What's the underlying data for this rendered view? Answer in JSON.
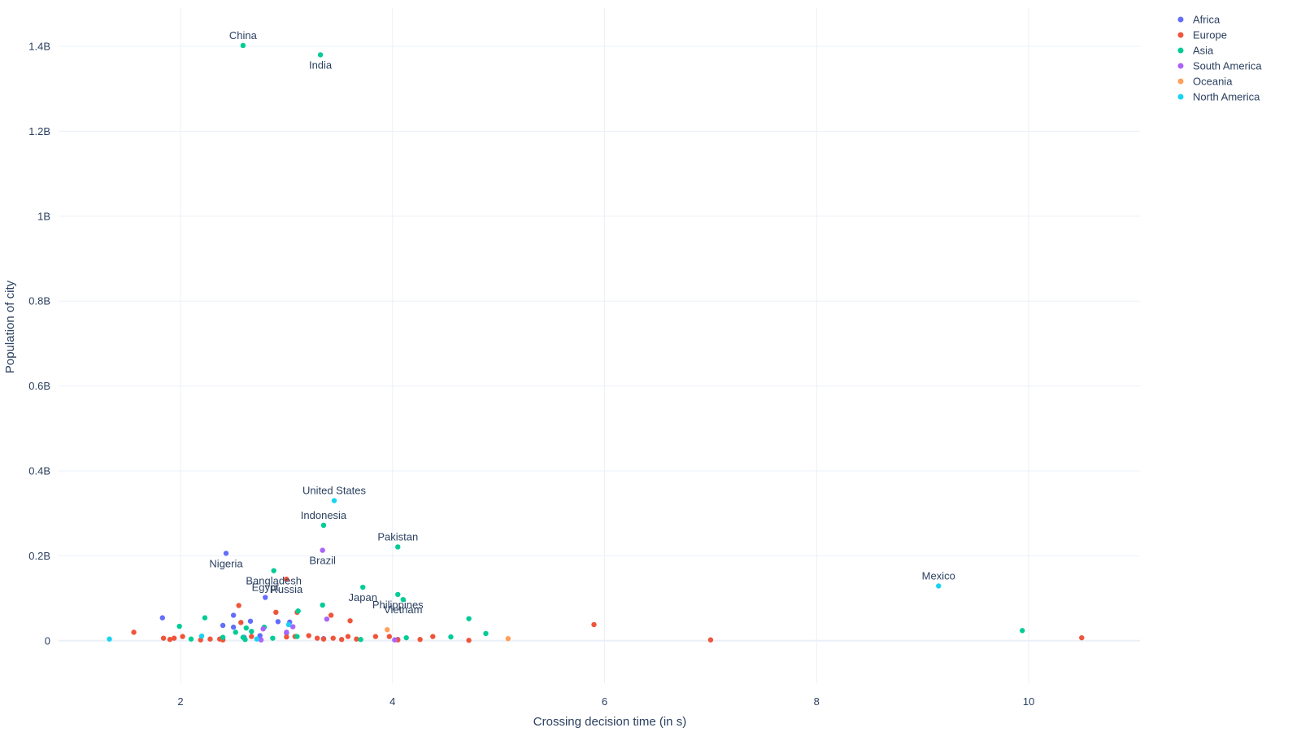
{
  "chart_data": {
    "type": "scatter",
    "title": "",
    "xlabel": "Crossing decision time (in s)",
    "ylabel": "Population of city",
    "xlim": [
      0.85,
      11.05
    ],
    "ylim": [
      -0.1,
      1.49
    ],
    "y_unit": "billion",
    "x_ticks": [
      2,
      4,
      6,
      8,
      10
    ],
    "x_tick_labels": [
      "2",
      "4",
      "6",
      "8",
      "10"
    ],
    "y_ticks": [
      0,
      0.2,
      0.4,
      0.6,
      0.8,
      1.0,
      1.2,
      1.4
    ],
    "y_tick_labels": [
      "0",
      "0.2B",
      "0.4B",
      "0.6B",
      "0.8B",
      "1B",
      "1.2B",
      "1.4B"
    ],
    "grid": true,
    "legend_position": "top-right",
    "series": [
      {
        "name": "Africa",
        "color": "#636efa",
        "points": [
          {
            "x": 2.43,
            "y": 0.206,
            "label": "Nigeria"
          },
          {
            "x": 2.8,
            "y": 0.102,
            "label": "Egypt"
          },
          {
            "x": 1.83,
            "y": 0.054
          },
          {
            "x": 2.5,
            "y": 0.06
          },
          {
            "x": 2.66,
            "y": 0.046
          },
          {
            "x": 2.92,
            "y": 0.045
          },
          {
            "x": 2.4,
            "y": 0.036
          },
          {
            "x": 2.5,
            "y": 0.032
          },
          {
            "x": 3.03,
            "y": 0.044
          },
          {
            "x": 2.75,
            "y": 0.012
          },
          {
            "x": 3.0,
            "y": 0.018
          },
          {
            "x": 2.6,
            "y": 0.008
          },
          {
            "x": 3.35,
            "y": 0.005
          },
          {
            "x": 4.05,
            "y": 0.003
          }
        ]
      },
      {
        "name": "Europe",
        "color": "#ef553b",
        "points": [
          {
            "x": 3.0,
            "y": 0.145,
            "label": "Russia"
          },
          {
            "x": 1.56,
            "y": 0.02
          },
          {
            "x": 1.84,
            "y": 0.006
          },
          {
            "x": 1.9,
            "y": 0.003
          },
          {
            "x": 1.94,
            "y": 0.006
          },
          {
            "x": 2.02,
            "y": 0.01
          },
          {
            "x": 2.19,
            "y": 0.002
          },
          {
            "x": 2.28,
            "y": 0.004
          },
          {
            "x": 2.37,
            "y": 0.004
          },
          {
            "x": 2.4,
            "y": 0.002
          },
          {
            "x": 2.55,
            "y": 0.083
          },
          {
            "x": 2.57,
            "y": 0.043
          },
          {
            "x": 2.67,
            "y": 0.01
          },
          {
            "x": 2.9,
            "y": 0.067
          },
          {
            "x": 3.0,
            "y": 0.009
          },
          {
            "x": 3.1,
            "y": 0.067
          },
          {
            "x": 3.08,
            "y": 0.01
          },
          {
            "x": 3.21,
            "y": 0.012
          },
          {
            "x": 3.29,
            "y": 0.006
          },
          {
            "x": 3.35,
            "y": 0.004
          },
          {
            "x": 3.42,
            "y": 0.06
          },
          {
            "x": 3.44,
            "y": 0.006
          },
          {
            "x": 3.52,
            "y": 0.003
          },
          {
            "x": 3.58,
            "y": 0.01
          },
          {
            "x": 3.6,
            "y": 0.047
          },
          {
            "x": 3.66,
            "y": 0.004
          },
          {
            "x": 3.84,
            "y": 0.01
          },
          {
            "x": 3.97,
            "y": 0.01
          },
          {
            "x": 4.05,
            "y": 0.002
          },
          {
            "x": 4.26,
            "y": 0.003
          },
          {
            "x": 4.38,
            "y": 0.01
          },
          {
            "x": 4.72,
            "y": 0.001
          },
          {
            "x": 5.9,
            "y": 0.038
          },
          {
            "x": 7.0,
            "y": 0.002
          },
          {
            "x": 10.5,
            "y": 0.007
          }
        ]
      },
      {
        "name": "Asia",
        "color": "#00cc96",
        "points": [
          {
            "x": 2.59,
            "y": 1.402,
            "label": "China"
          },
          {
            "x": 3.32,
            "y": 1.38,
            "label": "India"
          },
          {
            "x": 3.35,
            "y": 0.272,
            "label": "Indonesia"
          },
          {
            "x": 4.05,
            "y": 0.221,
            "label": "Pakistan"
          },
          {
            "x": 2.88,
            "y": 0.165,
            "label": "Bangladesh"
          },
          {
            "x": 3.72,
            "y": 0.126,
            "label": "Japan"
          },
          {
            "x": 4.05,
            "y": 0.109,
            "label": "Philippines"
          },
          {
            "x": 4.1,
            "y": 0.097,
            "label": "Vietnam"
          },
          {
            "x": 1.99,
            "y": 0.034
          },
          {
            "x": 2.1,
            "y": 0.004
          },
          {
            "x": 2.23,
            "y": 0.054
          },
          {
            "x": 2.4,
            "y": 0.008
          },
          {
            "x": 2.52,
            "y": 0.02
          },
          {
            "x": 2.59,
            "y": 0.008
          },
          {
            "x": 2.61,
            "y": 0.003
          },
          {
            "x": 2.62,
            "y": 0.03
          },
          {
            "x": 2.67,
            "y": 0.022
          },
          {
            "x": 2.79,
            "y": 0.032
          },
          {
            "x": 2.87,
            "y": 0.006
          },
          {
            "x": 3.11,
            "y": 0.07
          },
          {
            "x": 3.1,
            "y": 0.01
          },
          {
            "x": 3.34,
            "y": 0.084
          },
          {
            "x": 3.7,
            "y": 0.003
          },
          {
            "x": 4.13,
            "y": 0.007
          },
          {
            "x": 4.55,
            "y": 0.009
          },
          {
            "x": 4.72,
            "y": 0.052
          },
          {
            "x": 4.88,
            "y": 0.017
          },
          {
            "x": 9.94,
            "y": 0.024
          }
        ]
      },
      {
        "name": "South America",
        "color": "#ab63fa",
        "points": [
          {
            "x": 3.34,
            "y": 0.213,
            "label": "Brazil"
          },
          {
            "x": 3.38,
            "y": 0.051
          },
          {
            "x": 2.78,
            "y": 0.028
          },
          {
            "x": 2.76,
            "y": 0.002
          },
          {
            "x": 3.0,
            "y": 0.02
          },
          {
            "x": 3.06,
            "y": 0.033
          },
          {
            "x": 4.02,
            "y": 0.002
          }
        ]
      },
      {
        "name": "Oceania",
        "color": "#ffa15a",
        "points": [
          {
            "x": 3.95,
            "y": 0.026
          },
          {
            "x": 5.09,
            "y": 0.005
          }
        ]
      },
      {
        "name": "North America",
        "color": "#19d3f3",
        "points": [
          {
            "x": 3.45,
            "y": 0.33,
            "label": "United States"
          },
          {
            "x": 9.15,
            "y": 0.129,
            "label": "Mexico"
          },
          {
            "x": 1.33,
            "y": 0.004
          },
          {
            "x": 2.2,
            "y": 0.011
          },
          {
            "x": 2.72,
            "y": 0.004
          },
          {
            "x": 3.02,
            "y": 0.038
          }
        ]
      }
    ]
  }
}
